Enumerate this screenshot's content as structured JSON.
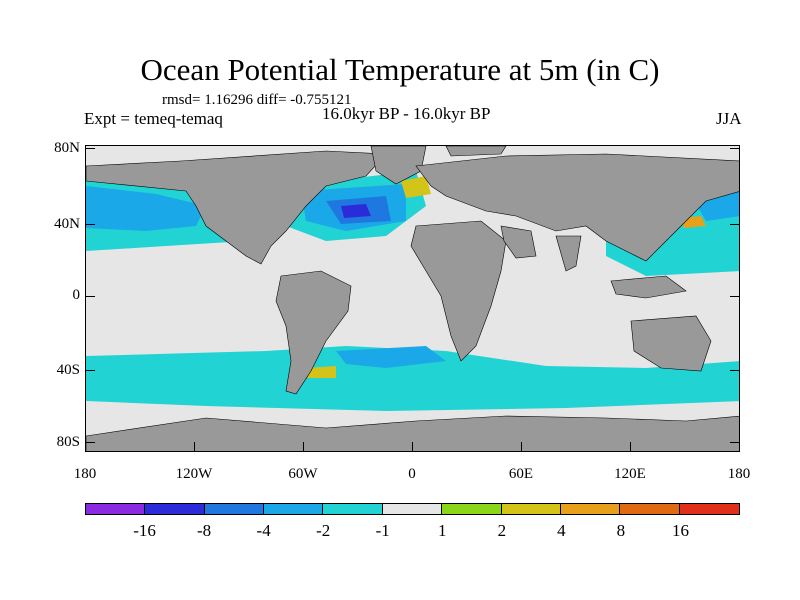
{
  "title": "Ocean Potential Temperature at 5m (in C)",
  "stats": "rmsd= 1.16296  diff= -0.755121",
  "experiment": "Expt = temeq-temaq",
  "period": "16.0kyr BP - 16.0kyr BP",
  "season": "JJA",
  "lat_labels": [
    "80N",
    "40N",
    "0",
    "40S",
    "80S"
  ],
  "lon_labels": [
    "180",
    "120W",
    "60W",
    "0",
    "60E",
    "120E",
    "180"
  ],
  "colorbar": {
    "colors": [
      "#8a2be2",
      "#2b2bd9",
      "#1e78e0",
      "#1aa8e8",
      "#22d3d3",
      "#e6e6e6",
      "#8ad71a",
      "#d4c41a",
      "#e6a01a",
      "#e06a10",
      "#e0301a"
    ],
    "labels": [
      "-16",
      "-8",
      "-4",
      "-2",
      "-1",
      "1",
      "2",
      "4",
      "8",
      "16"
    ]
  },
  "map_colors": {
    "land": "#999999",
    "ocean": "#e6e6e6",
    "cyan": "#22d3d3",
    "light_blue": "#1aa8e8",
    "blue": "#1e78e0",
    "dark_blue": "#2b2bd9",
    "green": "#8ad71a",
    "yellow": "#d4c41a",
    "orange": "#e6a01a"
  }
}
